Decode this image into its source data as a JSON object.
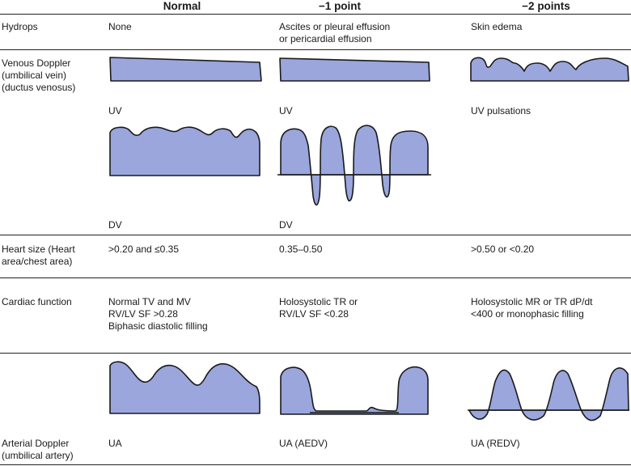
{
  "headers": {
    "normal": "Normal",
    "minus1": "−1 point",
    "minus2": "−2 points"
  },
  "rows": {
    "hydrops": {
      "label": "Hydrops",
      "normal": "None",
      "minus1": "Ascites or pleural effusion\nor pericardial effusion",
      "minus2": "Skin edema"
    },
    "venous": {
      "label": "Venous Doppler\n(umbilical vein)\n(ductus venosus)",
      "uv_normal": "UV",
      "uv_minus1": "UV",
      "uv_minus2": "UV pulsations",
      "dv_normal": "DV",
      "dv_minus1": "DV"
    },
    "heart_size": {
      "label": "Heart size (Heart\narea/chest area)",
      "normal": ">0.20 and ≤0.35",
      "minus1": "0.35–0.50",
      "minus2": ">0.50 or <0.20"
    },
    "cardiac": {
      "label": "Cardiac function",
      "normal": "Normal TV and MV\nRV/LV SF >0.28\nBiphasic diastolic filling",
      "minus1": "Holosystolic TR or\nRV/LV SF <0.28",
      "minus2": "Holosystolic MR or TR dP/dt\n<400 or monophasic filling"
    },
    "arterial": {
      "label": "Arterial Doppler\n(umbilical artery)",
      "normal": "UA",
      "minus1": "UA (AEDV)",
      "minus2": "UA (REDV)"
    }
  },
  "colors": {
    "waveform_fill": "#9aa6dc",
    "outline": "#1a1a1a"
  }
}
